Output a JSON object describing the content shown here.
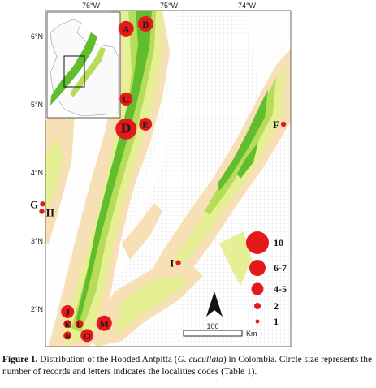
{
  "map": {
    "lon_ticks": [
      "76°W",
      "75°W",
      "74°W"
    ],
    "lat_ticks": [
      "6°N",
      "5°N",
      "4°N",
      "3°N",
      "2°N"
    ],
    "colors": {
      "lowland": "#ffffff",
      "foothill": "#f7dfb6",
      "midslope": "#e7ef95",
      "highland": "#b6dd5a",
      "forest": "#61bd2e",
      "grid": "#c9c9c9",
      "record_marker": "#e3191b"
    },
    "localities": [
      {
        "code": "A",
        "lon": -75.55,
        "lat": 6.15,
        "records": "6-7",
        "label_side": "inside"
      },
      {
        "code": "B",
        "lon": -75.3,
        "lat": 6.22,
        "records": "6-7",
        "label_side": "inside"
      },
      {
        "code": "C",
        "lon": -75.55,
        "lat": 5.12,
        "records": "4-5",
        "label_side": "inside"
      },
      {
        "code": "D",
        "lon": -75.55,
        "lat": 4.68,
        "records": "10",
        "label_side": "inside"
      },
      {
        "code": "E",
        "lon": -75.3,
        "lat": 4.75,
        "records": "4-5",
        "label_side": "inside"
      },
      {
        "code": "F",
        "lon": -73.53,
        "lat": 4.75,
        "records": "1",
        "label_side": "left"
      },
      {
        "code": "G",
        "lon": -76.62,
        "lat": 3.58,
        "records": "1",
        "label_side": "left"
      },
      {
        "code": "H",
        "lon": -76.63,
        "lat": 3.47,
        "records": "1",
        "label_side": "right"
      },
      {
        "code": "I",
        "lon": -74.88,
        "lat": 2.72,
        "records": "1",
        "label_side": "left"
      },
      {
        "code": "J",
        "lon": -76.3,
        "lat": 2.0,
        "records": "4-5",
        "label_side": "inside"
      },
      {
        "code": "K",
        "lon": -76.3,
        "lat": 1.82,
        "records": "2",
        "label_side": "inside"
      },
      {
        "code": "L",
        "lon": -76.15,
        "lat": 1.82,
        "records": "2",
        "label_side": "inside"
      },
      {
        "code": "M",
        "lon": -75.83,
        "lat": 1.83,
        "records": "6-7",
        "label_side": "inside"
      },
      {
        "code": "N",
        "lon": -76.3,
        "lat": 1.65,
        "records": "2",
        "label_side": "inside"
      },
      {
        "code": "O",
        "lon": -76.05,
        "lat": 1.65,
        "records": "4-5",
        "label_side": "inside"
      }
    ],
    "legend": {
      "entries": [
        {
          "label": "10",
          "records": 10
        },
        {
          "label": "6-7",
          "records": 6.5
        },
        {
          "label": "4-5",
          "records": 4.5
        },
        {
          "label": "2",
          "records": 2
        },
        {
          "label": "1",
          "records": 1
        }
      ]
    },
    "scalebar": {
      "label_value": "100",
      "label_unit": "Km"
    },
    "north_arrow": "north-arrow-icon"
  },
  "caption": {
    "figure_label": "Figure 1.",
    "text_before_italic": " Distribution of the Hooded Antpitta (",
    "italic": "G. cucullata",
    "text_after_italic": ") in Colombia. Circle size represents the number of records and letters indicates the localities codes (Table 1)."
  }
}
